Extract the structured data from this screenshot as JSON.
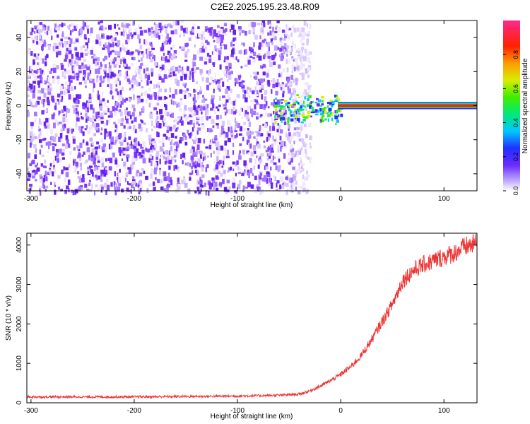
{
  "title": "C2E2.2025.195.23.48.R09",
  "chart_data": [
    {
      "type": "heatmap",
      "xlabel": "Height of straight line (km)",
      "ylabel": "Frequency (Hz)",
      "xlim": [
        -304,
        132
      ],
      "ylim": [
        -50,
        50
      ],
      "xticks": [
        -300,
        -200,
        -100,
        0,
        100
      ],
      "yticks": [
        -40,
        -20,
        0,
        20,
        40
      ],
      "description_of_field": {
        "noise_region_x": [
          -304,
          -40
        ],
        "noise_amplitude_approx": 0.1,
        "onset_region_x": [
          -65,
          0
        ],
        "signal_band_x": [
          0,
          132
        ],
        "signal_frequency_hz": 0,
        "signal_amplitude_peak": 1.0
      },
      "colorbar": {
        "label": "Normalized spectral amplitude",
        "range": [
          0,
          1
        ],
        "ticks": [
          0.0,
          0.2,
          0.4,
          0.6,
          0.8
        ]
      }
    },
    {
      "type": "line",
      "xlabel": "Height of straight line (km)",
      "ylabel": "SNR (10 * v/v)",
      "xlim": [
        -304,
        132
      ],
      "ylim": [
        0,
        4300
      ],
      "xticks": [
        -300,
        -200,
        -100,
        0,
        100
      ],
      "yticks": [
        0,
        1000,
        2000,
        3000,
        4000
      ],
      "series": [
        {
          "color": "#ee3333",
          "x": [
            -304,
            -250,
            -200,
            -150,
            -100,
            -60,
            -40,
            -30,
            -20,
            -10,
            0,
            10,
            20,
            30,
            40,
            50,
            55,
            60,
            70,
            80,
            90,
            100,
            110,
            120,
            132
          ],
          "y": [
            150,
            150,
            150,
            160,
            170,
            190,
            220,
            300,
            420,
            560,
            720,
            920,
            1200,
            1600,
            2050,
            2500,
            2800,
            3100,
            3350,
            3500,
            3600,
            3700,
            3800,
            3950,
            4050
          ]
        }
      ]
    }
  ]
}
